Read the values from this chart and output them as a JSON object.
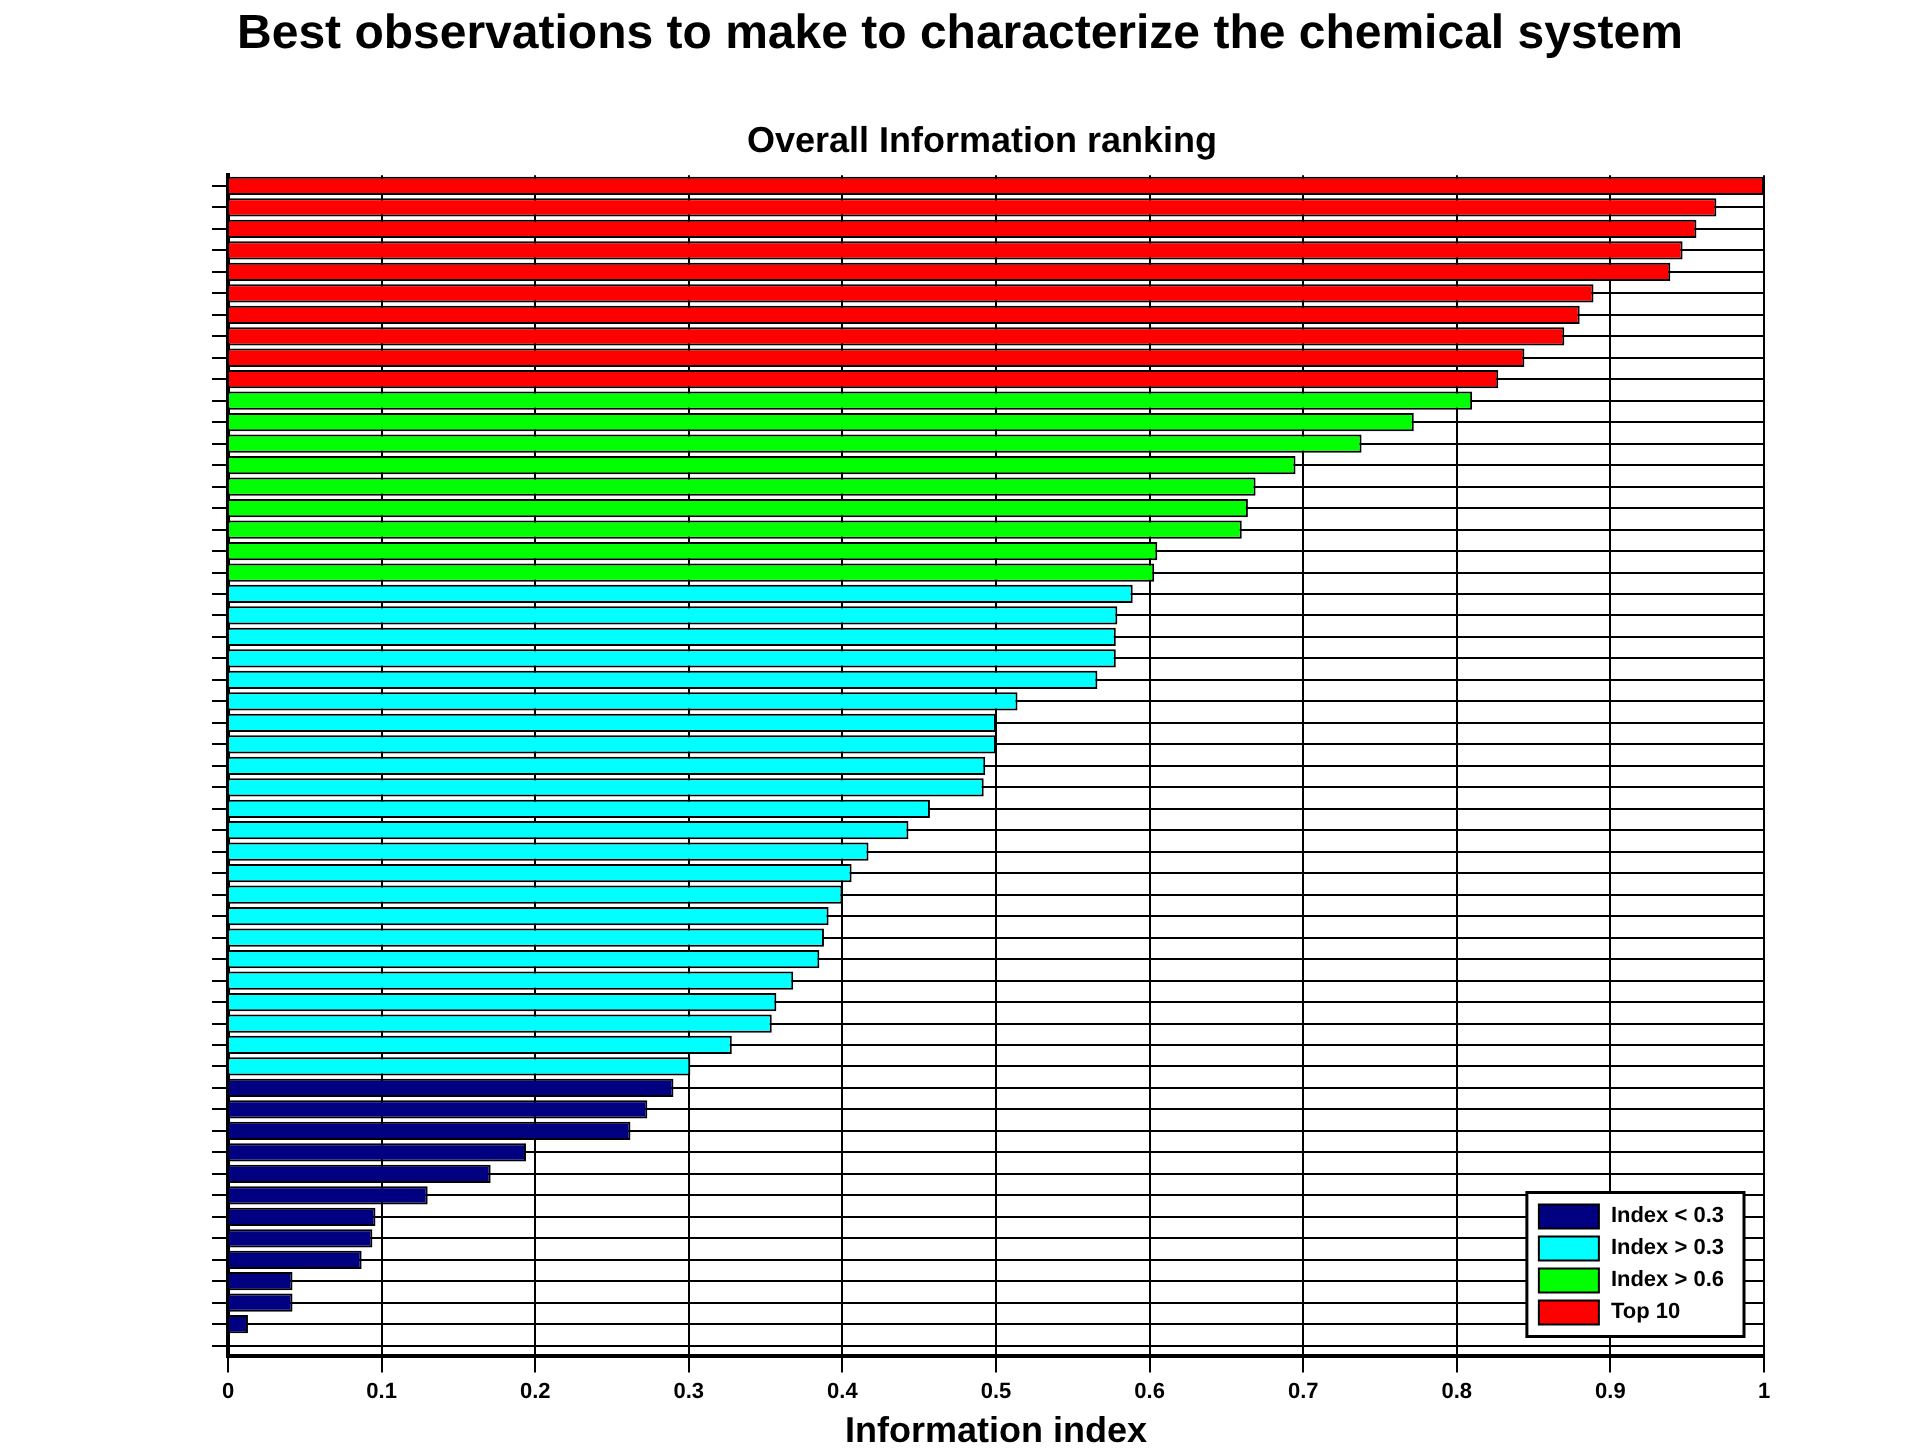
{
  "chart_data": {
    "type": "bar",
    "orientation": "horizontal",
    "title": "Best observations to make to characterize the chemical system",
    "subtitle": "Overall Information ranking",
    "xlabel": "Information index",
    "categories": [
      null,
      null,
      null,
      null,
      null,
      null,
      null,
      null,
      null,
      null,
      null,
      null,
      null,
      null,
      null,
      null,
      null,
      null,
      null,
      null,
      null,
      null,
      null,
      null,
      null,
      null,
      null,
      null,
      null,
      null,
      null,
      null,
      null,
      null,
      null,
      null,
      null,
      null,
      null,
      null,
      null,
      null,
      null,
      null,
      null,
      null,
      null,
      null,
      null,
      null,
      null,
      null,
      null,
      null,
      null
    ],
    "series": [
      {
        "name": "Index < 0.3",
        "color": "#000080",
        "values": [
          null,
          null,
          null,
          null,
          null,
          null,
          null,
          null,
          null,
          null,
          null,
          null,
          null,
          null,
          null,
          null,
          null,
          null,
          null,
          null,
          null,
          null,
          null,
          null,
          null,
          null,
          null,
          null,
          null,
          null,
          null,
          null,
          null,
          null,
          null,
          null,
          null,
          null,
          null,
          null,
          null,
          null,
          0.29,
          0.273,
          0.262,
          0.194,
          0.171,
          0.13,
          0.096,
          0.094,
          0.087,
          0.042,
          0.042,
          0.013,
          0
        ]
      },
      {
        "name": "Index > 0.3",
        "color": "#00ffff",
        "values": [
          null,
          null,
          null,
          null,
          null,
          null,
          null,
          null,
          null,
          null,
          null,
          null,
          null,
          null,
          null,
          null,
          null,
          null,
          null,
          0.589,
          0.579,
          0.578,
          0.578,
          0.566,
          0.514,
          0.5,
          0.5,
          0.493,
          0.492,
          0.457,
          0.443,
          0.417,
          0.406,
          0.4,
          0.391,
          0.388,
          0.385,
          0.368,
          0.357,
          0.354,
          0.328,
          0.301,
          null,
          null,
          null,
          null,
          null,
          null,
          null,
          null,
          null,
          null,
          null,
          null,
          null
        ]
      },
      {
        "name": "Index > 0.6",
        "color": "#00ff00",
        "values": [
          null,
          null,
          null,
          null,
          null,
          null,
          null,
          null,
          null,
          null,
          0.81,
          0.772,
          0.738,
          0.695,
          0.669,
          0.664,
          0.66,
          0.605,
          0.603,
          null,
          null,
          null,
          null,
          null,
          null,
          null,
          null,
          null,
          null,
          null,
          null,
          null,
          null,
          null,
          null,
          null,
          null,
          null,
          null,
          null,
          null,
          null,
          null,
          null,
          null,
          null,
          null,
          null,
          null,
          null,
          null,
          null,
          null,
          null,
          null
        ]
      },
      {
        "name": "Top 10",
        "color": "#ff0000",
        "values": [
          1.0,
          0.969,
          0.956,
          0.947,
          0.939,
          0.889,
          0.88,
          0.87,
          0.844,
          0.827,
          null,
          null,
          null,
          null,
          null,
          null,
          null,
          null,
          null,
          null,
          null,
          null,
          null,
          null,
          null,
          null,
          null,
          null,
          null,
          null,
          null,
          null,
          null,
          null,
          null,
          null,
          null,
          null,
          null,
          null,
          null,
          null,
          null,
          null,
          null,
          null,
          null,
          null,
          null,
          null,
          null,
          null,
          null,
          null,
          null
        ]
      }
    ],
    "xlim": [
      0,
      1
    ],
    "xticks": [
      0,
      0.1,
      0.2,
      0.3,
      0.4,
      0.5,
      0.6,
      0.7,
      0.8,
      0.9,
      1
    ],
    "grid": true,
    "legend": "bottom right"
  }
}
